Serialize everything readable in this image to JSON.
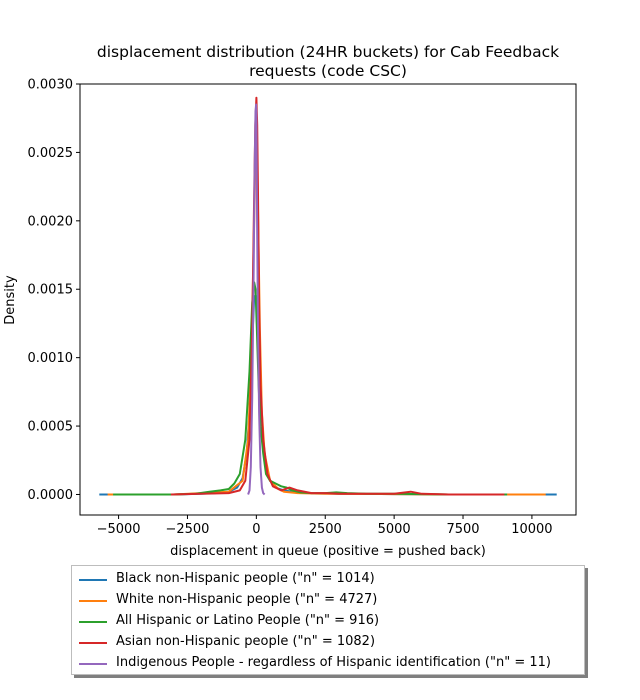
{
  "chart_data": {
    "type": "line",
    "title_line1": "displacement distribution (24HR buckets) for Cab Feedback",
    "title_line2": "requests (code CSC)",
    "xlabel": "displacement in queue (positive = pushed back)",
    "ylabel": "Density",
    "xlim": [
      -6400,
      11600
    ],
    "ylim": [
      -0.00015,
      0.003
    ],
    "xticks": [
      -5000,
      -2500,
      0,
      2500,
      5000,
      7500,
      10000
    ],
    "xtick_labels": [
      "−5000",
      "−2500",
      "0",
      "2500",
      "5000",
      "7500",
      "10000"
    ],
    "yticks": [
      0.0,
      0.0005,
      0.001,
      0.0015,
      0.002,
      0.0025,
      0.003
    ],
    "ytick_labels": [
      "0.0000",
      "0.0005",
      "0.0010",
      "0.0015",
      "0.0020",
      "0.0025",
      "0.0030"
    ],
    "grid": false,
    "legend_placement": "below plot",
    "series": [
      {
        "name": "Black non-Hispanic people (\"n\" = 1014)",
        "color": "#1f77b4",
        "x": [
          -5700,
          -3000,
          -2000,
          -1500,
          -1000,
          -700,
          -500,
          -350,
          -250,
          -150,
          -80,
          0,
          50,
          100,
          150,
          250,
          350,
          500,
          700,
          1000,
          1300,
          2000,
          3000,
          5000,
          7000,
          9000,
          10900
        ],
        "y": [
          0.0,
          0.0,
          5e-06,
          1e-05,
          2e-05,
          5e-05,
          0.00012,
          0.0003,
          0.0006,
          0.0011,
          0.00145,
          0.00145,
          0.0013,
          0.001,
          0.0007,
          0.0004,
          0.0002,
          0.0001,
          5e-05,
          3e-05,
          2e-05,
          1e-05,
          5e-06,
          3e-06,
          0.0,
          0.0,
          0.0
        ]
      },
      {
        "name": "White non-Hispanic people (\"n\" = 4727)",
        "color": "#ff7f0e",
        "x": [
          -5400,
          -3000,
          -2000,
          -1000,
          -500,
          -300,
          -180,
          -100,
          -50,
          0,
          40,
          80,
          130,
          200,
          300,
          500,
          800,
          1000,
          1500,
          2500,
          5000,
          7000,
          10500
        ],
        "y": [
          0.0,
          0.0,
          1e-05,
          2e-05,
          0.0001,
          0.0004,
          0.001,
          0.0018,
          0.0023,
          0.0025,
          0.0023,
          0.0018,
          0.0012,
          0.0006,
          0.0003,
          0.0001,
          4e-05,
          2e-05,
          1e-05,
          5e-06,
          3e-06,
          0.0,
          0.0
        ]
      },
      {
        "name": "All Hispanic or Latino People (\"n\" = 916)",
        "color": "#2ca02c",
        "x": [
          -5200,
          -3000,
          -2200,
          -1700,
          -1300,
          -1000,
          -800,
          -600,
          -400,
          -250,
          -150,
          -80,
          -30,
          20,
          80,
          150,
          250,
          350,
          500,
          700,
          900,
          1100,
          1300,
          1600,
          2000,
          2500,
          2900,
          3300,
          4000,
          5000,
          6000,
          7000,
          8000,
          9100
        ],
        "y": [
          0.0,
          0.0,
          5e-06,
          2e-05,
          3e-05,
          4e-05,
          8e-05,
          0.00015,
          0.0004,
          0.0009,
          0.0014,
          0.00155,
          0.0015,
          0.0012,
          0.0008,
          0.0005,
          0.0003,
          0.00015,
          0.0001,
          8e-05,
          6e-05,
          5e-05,
          3e-05,
          1.5e-05,
          1e-05,
          1e-05,
          1.5e-05,
          1e-05,
          5e-06,
          5e-06,
          3e-06,
          0.0,
          0.0,
          0.0
        ]
      },
      {
        "name": "Asian non-Hispanic people (\"n\" = 1082)",
        "color": "#d62728",
        "x": [
          -3100,
          -2000,
          -1000,
          -600,
          -400,
          -250,
          -150,
          -80,
          -40,
          0,
          30,
          60,
          100,
          150,
          250,
          400,
          600,
          900,
          1200,
          1500,
          2000,
          2500,
          3000,
          4000,
          5000,
          5600,
          6000,
          7000,
          9000
        ],
        "y": [
          0.0,
          5e-06,
          1e-05,
          3e-05,
          0.0001,
          0.0004,
          0.0012,
          0.0022,
          0.0027,
          0.0029,
          0.0027,
          0.0022,
          0.0014,
          0.0008,
          0.0004,
          0.00015,
          6e-05,
          3e-05,
          5e-05,
          3e-05,
          1e-05,
          1e-05,
          5e-06,
          5e-06,
          5e-06,
          2e-05,
          5e-06,
          0.0,
          0.0
        ]
      },
      {
        "name": "Indigenous People - regardless of Hispanic identification (\"n\" = 11)",
        "color": "#9467bd",
        "x": [
          -300,
          -250,
          -200,
          -150,
          -100,
          -60,
          -30,
          -10,
          0,
          10,
          30,
          60,
          100,
          150,
          200,
          250,
          300
        ],
        "y": [
          0.0,
          3e-05,
          0.0002,
          0.0007,
          0.0016,
          0.0024,
          0.0028,
          0.00285,
          0.0028,
          0.0025,
          0.0019,
          0.0012,
          0.0006,
          0.0002,
          5e-05,
          1e-05,
          0.0
        ]
      }
    ]
  }
}
